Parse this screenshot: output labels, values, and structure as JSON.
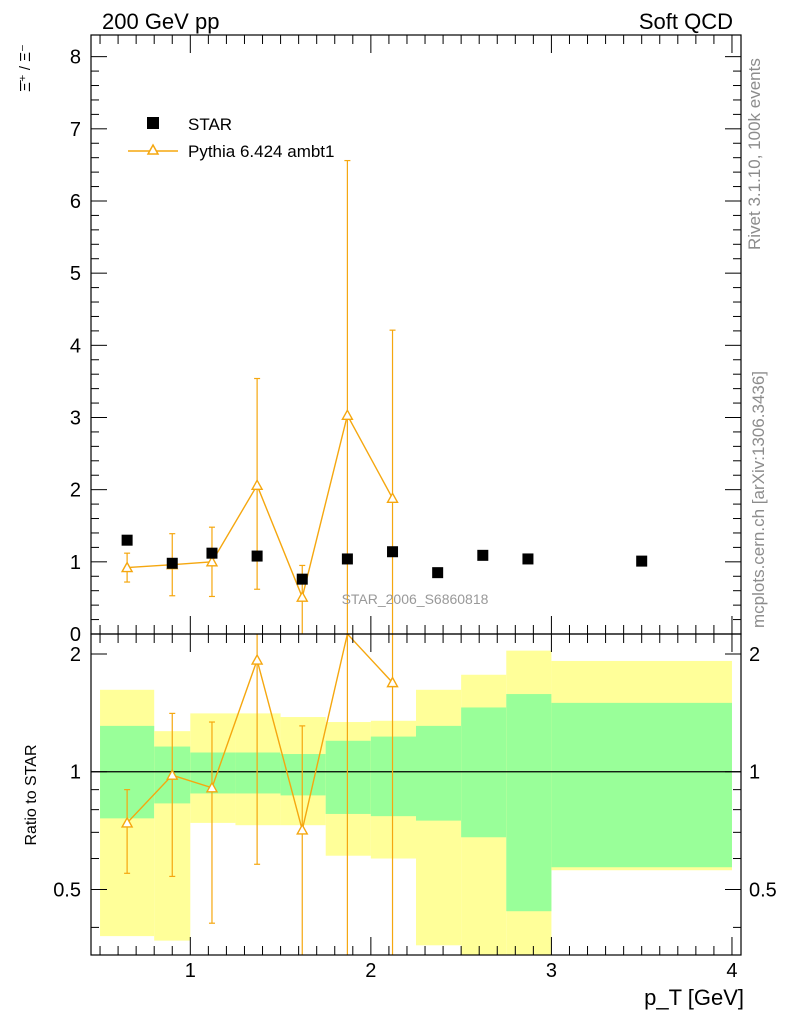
{
  "header": {
    "left": "200 GeV pp",
    "right": "Soft QCD"
  },
  "side": {
    "top": "Rivet 3.1.10,  100k events",
    "bottom": "mcplots.cern.ch [arXiv:1306.3436]"
  },
  "watermark": "STAR_2006_S6860818",
  "colors": {
    "mc": "#f5a70f",
    "band_outer": "#ffff99",
    "band_inner": "#99ff99",
    "data": "#000000"
  },
  "chart_data": [
    {
      "type": "scatter",
      "panel": "main",
      "ylabel": "Ξ̄⁺ / Ξ⁻",
      "xlim": [
        0.45,
        4.05
      ],
      "ylim": [
        0,
        8.3
      ],
      "yticks": [
        "0",
        "1",
        "2",
        "3",
        "4",
        "5",
        "6",
        "7",
        "8"
      ],
      "legend": {
        "placement": "top-left",
        "entries": [
          "STAR",
          "Pythia 6.424 ambt1"
        ]
      },
      "series": [
        {
          "name": "STAR",
          "marker": "square",
          "x": [
            0.65,
            0.9,
            1.12,
            1.37,
            1.62,
            1.87,
            2.12,
            2.37,
            2.62,
            2.87,
            3.5
          ],
          "y": [
            1.3,
            0.98,
            1.12,
            1.08,
            0.76,
            1.04,
            1.14,
            0.85,
            1.09,
            1.04,
            1.01
          ]
        },
        {
          "name": "Pythia 6.424 ambt1",
          "marker": "open-triangle",
          "x": [
            0.65,
            0.9,
            1.12,
            1.37,
            1.62,
            1.87,
            2.12
          ],
          "y": [
            0.92,
            0.96,
            1.0,
            2.06,
            0.51,
            3.03,
            1.88
          ],
          "yerr_low": [
            0.2,
            0.43,
            0.48,
            1.44,
            0.51,
            3.03,
            1.88
          ],
          "yerr_high": [
            0.2,
            0.43,
            0.48,
            1.48,
            0.44,
            3.53,
            2.33
          ]
        }
      ]
    },
    {
      "type": "line",
      "panel": "ratio",
      "ylabel": "Ratio to STAR",
      "xlabel": "p_T [GeV]",
      "xlim": [
        0.45,
        4.05
      ],
      "ylim": [
        0.34,
        2.25
      ],
      "xticks": [
        "1",
        "2",
        "3",
        "4"
      ],
      "yticks": [
        "0.5",
        "1",
        "2"
      ],
      "bands": {
        "bins": [
          [
            0.5,
            0.8
          ],
          [
            0.8,
            1.0
          ],
          [
            1.0,
            1.25
          ],
          [
            1.25,
            1.5
          ],
          [
            1.5,
            1.75
          ],
          [
            1.75,
            2.0
          ],
          [
            2.0,
            2.25
          ],
          [
            2.25,
            2.5
          ],
          [
            2.5,
            2.75
          ],
          [
            2.75,
            3.0
          ],
          [
            3.0,
            4.0
          ]
        ],
        "outer_low": [
          0.38,
          0.37,
          0.74,
          0.73,
          0.73,
          0.61,
          0.6,
          0.36,
          0.34,
          0.34,
          0.56
        ],
        "outer_high": [
          1.62,
          1.27,
          1.41,
          1.41,
          1.38,
          1.34,
          1.35,
          1.62,
          1.77,
          2.04,
          1.92
        ],
        "inner_low": [
          0.76,
          0.83,
          0.88,
          0.88,
          0.87,
          0.78,
          0.77,
          0.75,
          0.68,
          0.44,
          0.57
        ],
        "inner_high": [
          1.31,
          1.16,
          1.12,
          1.12,
          1.11,
          1.2,
          1.23,
          1.31,
          1.46,
          1.58,
          1.5
        ]
      },
      "series": [
        {
          "name": "Pythia 6.424 ambt1",
          "x": [
            0.65,
            0.9,
            1.12,
            1.37,
            1.62,
            1.87,
            2.12
          ],
          "y": [
            0.74,
            0.98,
            0.91,
            1.93,
            0.71,
            2.9,
            1.69
          ],
          "yerr_low": [
            0.19,
            0.44,
            0.5,
            1.35,
            0.71,
            2.9,
            1.69
          ],
          "yerr_high": [
            0.16,
            0.43,
            0.43,
            1.6,
            0.6,
            3.4,
            2.0
          ]
        }
      ]
    }
  ]
}
